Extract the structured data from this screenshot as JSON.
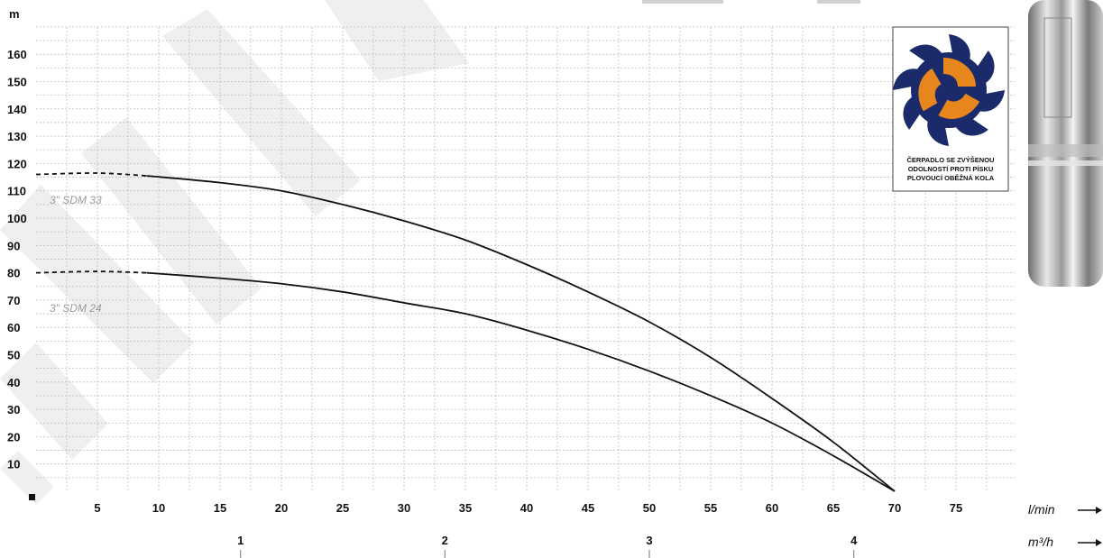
{
  "chart_data": {
    "type": "line",
    "y_unit": "m",
    "x_unit": "l/min",
    "x2_unit": "m³/h",
    "ylim": [
      0,
      170
    ],
    "xlim": [
      0,
      83
    ],
    "y_ticks": [
      10,
      20,
      30,
      40,
      50,
      60,
      70,
      80,
      90,
      100,
      110,
      120,
      130,
      140,
      150,
      160
    ],
    "x_ticks": [
      5,
      10,
      15,
      20,
      25,
      30,
      35,
      40,
      45,
      50,
      55,
      60,
      65,
      70,
      75
    ],
    "x2_ticks": [
      {
        "label": "1",
        "lpm": 16.67
      },
      {
        "label": "2",
        "lpm": 33.33
      },
      {
        "label": "3",
        "lpm": 50
      },
      {
        "label": "4",
        "lpm": 66.67
      }
    ],
    "grid": true,
    "series": [
      {
        "name": "3\" SDM 33",
        "dashed_until": 9,
        "points": [
          [
            0,
            116
          ],
          [
            5,
            116.5
          ],
          [
            9,
            115.5
          ],
          [
            15,
            113
          ],
          [
            20,
            110
          ],
          [
            25,
            105
          ],
          [
            30,
            99
          ],
          [
            35,
            92
          ],
          [
            40,
            83
          ],
          [
            45,
            73
          ],
          [
            50,
            62
          ],
          [
            55,
            49
          ],
          [
            60,
            34
          ],
          [
            65,
            18
          ],
          [
            70,
            0
          ]
        ]
      },
      {
        "name": "3\" SDM 24",
        "dashed_until": 9,
        "points": [
          [
            0,
            80
          ],
          [
            5,
            80.5
          ],
          [
            9,
            80
          ],
          [
            15,
            78
          ],
          [
            20,
            76
          ],
          [
            25,
            73
          ],
          [
            30,
            69
          ],
          [
            35,
            65
          ],
          [
            40,
            59
          ],
          [
            45,
            52
          ],
          [
            50,
            44
          ],
          [
            55,
            35
          ],
          [
            60,
            25
          ],
          [
            65,
            13
          ],
          [
            70,
            0
          ]
        ]
      }
    ]
  },
  "badge": {
    "line1": "ČERPADLO SE ZVÝŠENOU",
    "line2": "ODOLNOSTÍ PROTI PÍSKU",
    "line3": "PLOVOUCÍ OBĚŽNÁ KOLA"
  },
  "colors": {
    "curve": "#111111",
    "impeller_orange": "#e8861e",
    "impeller_blue": "#1b2a6b"
  }
}
